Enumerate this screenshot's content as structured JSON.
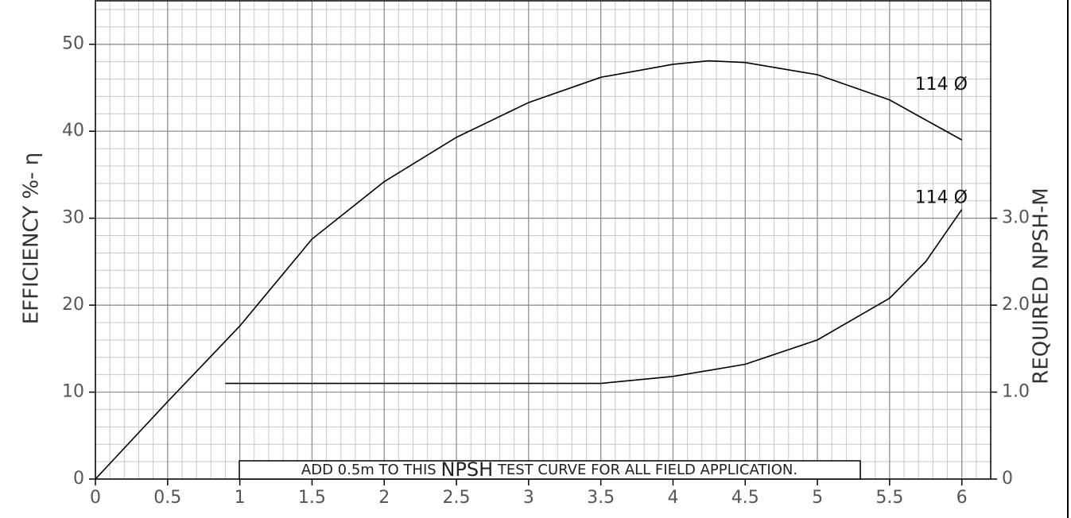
{
  "chart_data": {
    "type": "line",
    "ylabel": "EFFICIENCY %- η",
    "y2label": "REQUIRED NPSH-M",
    "annotation": [
      "ADD 0.5m TO THIS",
      "NPSH",
      "TEST CURVE FOR ALL FIELD APPLICATION."
    ],
    "xlim": [
      0,
      6.2
    ],
    "xticks": [
      0,
      0.5,
      1,
      1.5,
      2,
      2.5,
      3,
      3.5,
      4,
      4.5,
      5,
      5.5,
      6
    ],
    "ylim": [
      0,
      55
    ],
    "yticks": [
      0,
      10,
      20,
      30,
      40,
      50
    ],
    "y2lim": [
      0,
      5.5
    ],
    "y2ticks": [
      0,
      {
        "value": 1,
        "label": "1.0"
      },
      {
        "value": 2,
        "label": "2.0"
      },
      {
        "value": 3,
        "label": "3.0"
      }
    ],
    "grid": true,
    "series": [
      {
        "name": "114 Ø",
        "color": "#000000",
        "x": [
          0,
          0.5,
          1,
          1.5,
          2,
          2.5,
          3,
          3.5,
          4,
          4.25,
          4.5,
          5,
          5.5,
          6
        ],
        "values": [
          0,
          8.9,
          17.6,
          27.6,
          34.2,
          39.3,
          43.3,
          46.2,
          47.7,
          48.1,
          47.9,
          46.5,
          43.6,
          39.0
        ]
      },
      {
        "name": "114 Ø",
        "color": "#000000",
        "axis": "y2",
        "x": [
          0.9,
          1.5,
          2,
          2.5,
          3,
          3.5,
          4,
          4.5,
          5,
          5.5,
          5.75,
          6
        ],
        "values": [
          1.1,
          1.1,
          1.1,
          1.1,
          1.1,
          1.1,
          1.18,
          1.32,
          1.6,
          2.08,
          2.5,
          3.1
        ]
      }
    ]
  }
}
